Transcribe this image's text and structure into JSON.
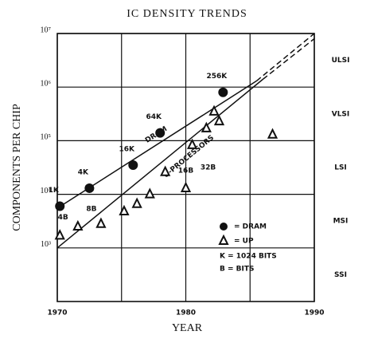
{
  "chart_data": {
    "type": "scatter",
    "title": "IC DENSITY TRENDS",
    "xlabel": "YEAR",
    "ylabel": "COMPONENTS PER CHIP",
    "xlim": [
      1970,
      1990
    ],
    "xticks": [
      1970,
      1980,
      1990
    ],
    "xminor_grid": [
      1975,
      1985
    ],
    "ylim": [
      100,
      10000000
    ],
    "ylog": true,
    "yticks": [
      {
        "value": 1000,
        "label": "10³"
      },
      {
        "value": 10000,
        "label": "10⁴"
      },
      {
        "value": 100000,
        "label": "10⁵"
      },
      {
        "value": 1000000,
        "label": "10⁶"
      },
      {
        "value": 10000000,
        "label": "10⁷"
      }
    ],
    "grid": true,
    "color": "#111111",
    "bands": [
      {
        "label": "ULSI",
        "from": 1000000,
        "to": 10000000
      },
      {
        "label": "VLSI",
        "from": 100000,
        "to": 1000000
      },
      {
        "label": "LSI",
        "from": 10000,
        "to": 100000
      },
      {
        "label": "MSI",
        "from": 1000,
        "to": 10000
      },
      {
        "label": "SSI",
        "from": 100,
        "to": 1000
      }
    ],
    "series": [
      {
        "name": "= DRAM",
        "marker": "circle",
        "x": [
          1970.2,
          1972.5,
          1975.9,
          1978,
          1982.9
        ],
        "values": [
          6000,
          13000,
          35000,
          140000,
          800000
        ],
        "labels": [
          "1K",
          "4K",
          "16K",
          "64K",
          "256K"
        ]
      },
      {
        "name": "= UP",
        "marker": "triangle",
        "x": [
          1970.2,
          1971.6,
          1973.4,
          1975.2,
          1976.2,
          1977.2,
          1978.4,
          1980,
          1980.5,
          1981.6,
          1982.2,
          1982.6,
          1986.75
        ],
        "values": [
          1700,
          2500,
          2800,
          4800,
          6600,
          10000,
          26000,
          13000,
          83000,
          170000,
          350000,
          230000,
          130000
        ],
        "labels": [
          "4B",
          null,
          "8B",
          null,
          null,
          null,
          null,
          "16B",
          "32B",
          null,
          null,
          null,
          null
        ]
      }
    ],
    "trends": [
      {
        "name": "DRAM",
        "x": [
          1970,
          1985.5,
          1990
        ],
        "values": [
          5500,
          1300000,
          10000000
        ],
        "segment_styles": [
          "solid",
          "dashed"
        ]
      },
      {
        "name": "U-PROCESSORS",
        "x": [
          1970,
          1986,
          1990
        ],
        "values": [
          1000,
          1400000,
          8000000
        ],
        "segment_styles": [
          "solid",
          "dashed"
        ]
      }
    ],
    "legend_notes": [
      "K = 1024 BITS",
      "B = BITS"
    ]
  }
}
